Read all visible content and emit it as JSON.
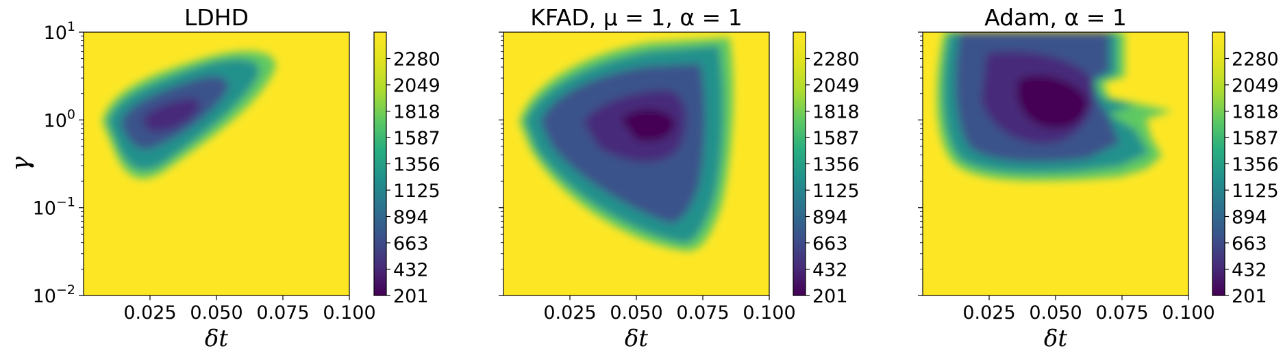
{
  "chart_data": [
    {
      "type": "heatmap",
      "title": "LDHD",
      "xlabel": "δt",
      "ylabel": "γ",
      "xlim": [
        0.0,
        0.1
      ],
      "ylim": [
        0.01,
        10
      ],
      "yscale": "log",
      "x_ticks": [
        "0.025",
        "0.050",
        "0.075",
        "0.100"
      ],
      "y_ticks": [
        {
          "base": "10",
          "exp": "1"
        },
        {
          "base": "10",
          "exp": "0"
        },
        {
          "base": "10",
          "exp": "−1"
        },
        {
          "base": "10",
          "exp": "−2"
        }
      ],
      "colorbar_ticks": [
        "2280",
        "2049",
        "1818",
        "1587",
        "1356",
        "1125",
        "894",
        "663",
        "432",
        "201"
      ],
      "colorbar_range": [
        201,
        2511
      ],
      "colormap": "viridis",
      "low_value_region": {
        "description_values": "elliptical low region tilted upward",
        "min_center": {
          "x": 0.03,
          "log10_y": 0.0
        },
        "min_value": 201,
        "max_value": 2511
      }
    },
    {
      "type": "heatmap",
      "title": "KFAD, μ = 1, α = 1",
      "xlabel": "δt",
      "ylabel": "",
      "xlim": [
        0.0,
        0.1
      ],
      "ylim": [
        0.01,
        10
      ],
      "yscale": "log",
      "x_ticks": [
        "0.025",
        "0.050",
        "0.075",
        "0.100"
      ],
      "colorbar_ticks": [
        "2280",
        "2049",
        "1818",
        "1587",
        "1356",
        "1125",
        "894",
        "663",
        "432",
        "201"
      ],
      "colorbar_range": [
        201,
        2511
      ],
      "colormap": "viridis",
      "low_value_region": {
        "min_center": {
          "x": 0.065,
          "log10_y": -0.05
        },
        "min_value": 201,
        "max_value": 2511
      }
    },
    {
      "type": "heatmap",
      "title": "Adam, α = 1",
      "xlabel": "δt",
      "ylabel": "",
      "xlim": [
        0.0,
        0.1
      ],
      "ylim": [
        0.01,
        10
      ],
      "yscale": "log",
      "x_ticks": [
        "0.025",
        "0.050",
        "0.075",
        "0.100"
      ],
      "colorbar_ticks": [
        "2280",
        "2049",
        "1818",
        "1587",
        "1356",
        "1125",
        "894",
        "663",
        "432",
        "201"
      ],
      "colorbar_range": [
        201,
        2511
      ],
      "colormap": "viridis",
      "low_value_region": {
        "min_center": {
          "x": 0.058,
          "log10_y": 0.2
        },
        "min_value": 201,
        "max_value": 2511
      }
    }
  ],
  "colors": {
    "viridis_low": "#440154",
    "viridis_high": "#fde725"
  }
}
